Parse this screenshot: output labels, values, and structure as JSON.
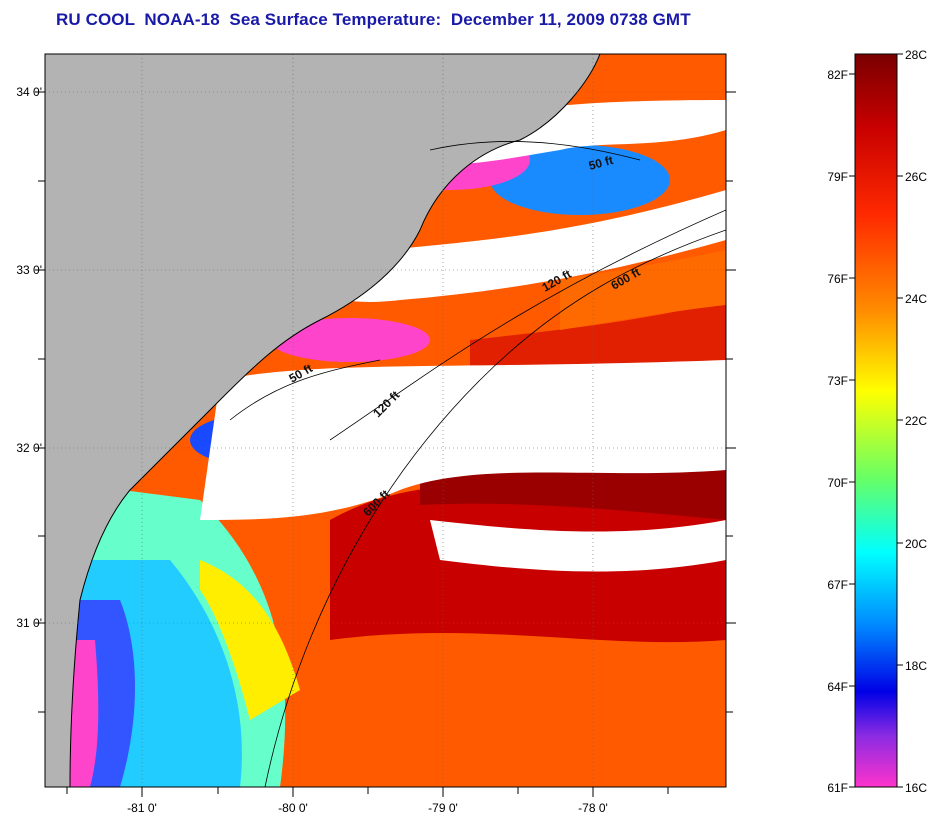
{
  "title": "RU COOL  NOAA-18  Sea Surface Temperature:  December 11, 2009 0738 GMT",
  "map": {
    "lat_labels": [
      {
        "text": "34 0'",
        "lat": 34.0
      },
      {
        "text": "33 0'",
        "lat": 33.0
      },
      {
        "text": "32 0'",
        "lat": 32.0
      },
      {
        "text": "31 0'",
        "lat": 31.0
      }
    ],
    "lon_labels": [
      {
        "text": "-81 0'",
        "lon": -81.0
      },
      {
        "text": "-80 0'",
        "lon": -80.0
      },
      {
        "text": "-79 0'",
        "lon": -79.0
      },
      {
        "text": "-78 0'",
        "lon": -78.0
      }
    ],
    "contour_labels": [
      "50 ft",
      "50 ft",
      "120 ft",
      "120 ft",
      "600 ft",
      "600 ft"
    ],
    "colors": {
      "land": "#b3b3b3",
      "cloud": "#ffffff",
      "warm_dark": "#a00000",
      "warm": "#e62000",
      "orange": "#ff6a00",
      "yellow": "#ffee00",
      "green": "#66ff66",
      "cyan": "#00e6ff",
      "blue": "#1a5aff",
      "dark_blue": "#1a1ad9",
      "magenta": "#ff44cc"
    }
  },
  "colorbar": {
    "celsius_labels": [
      "28C",
      "26C",
      "24C",
      "22C",
      "20C",
      "18C",
      "16C"
    ],
    "fahrenheit_labels": [
      "82F",
      "79F",
      "76F",
      "73F",
      "70F",
      "67F",
      "64F",
      "61F"
    ],
    "range_c": [
      16,
      28
    ]
  }
}
